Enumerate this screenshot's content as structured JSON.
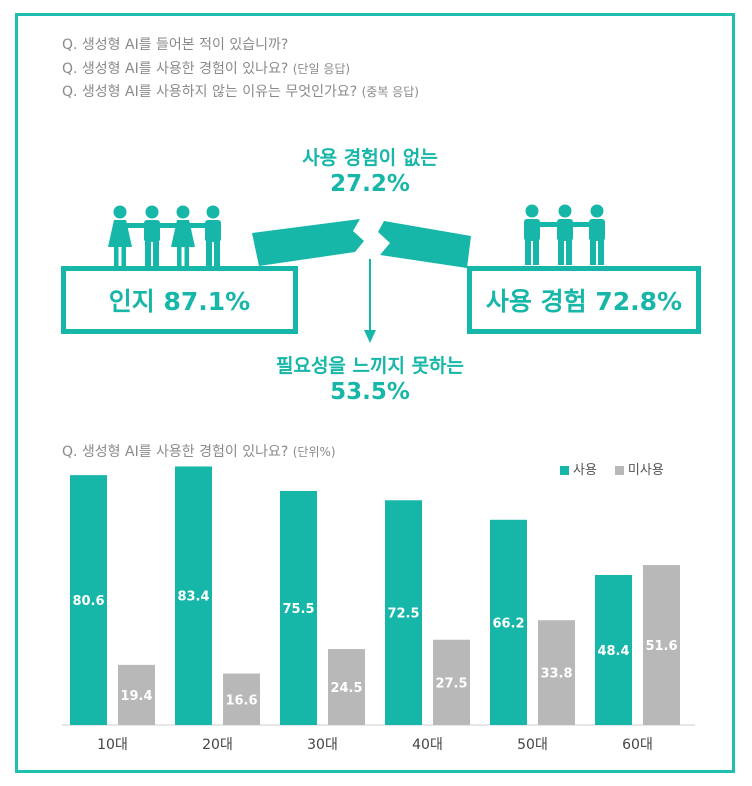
{
  "questions": [
    {
      "text": "Q. 생성형 AI를 들어본 적이 있습니까?",
      "note": ""
    },
    {
      "text": "Q. 생성형 AI를 사용한 경험이 있나요?",
      "note": "(단일 응답)"
    },
    {
      "text": "Q. 생성형 AI를 사용하지 않는 이유는 무엇인가요?",
      "note": "(중복 응답)"
    }
  ],
  "infographic": {
    "no_experience_label": "사용 경험이 없는",
    "no_experience_value": "27.2%",
    "awareness_label": "인지 87.1%",
    "usage_label": "사용 경험 72.8%",
    "no_need_label": "필요성을 느끼지 못하는",
    "no_need_value": "53.5%"
  },
  "chart_title": {
    "text": "Q. 생성형 AI를 사용한 경험이 있나요?",
    "note": "(단위%)"
  },
  "colors": {
    "accent": "#16b6a8",
    "gray": "#b8b8b8",
    "text_gray": "#8a8a8a"
  },
  "chart_data": {
    "type": "bar",
    "categories": [
      "10대",
      "20대",
      "30대",
      "40대",
      "50대",
      "60대"
    ],
    "series": [
      {
        "name": "사용",
        "color": "#16b6a8",
        "values": [
          80.6,
          83.4,
          75.5,
          72.5,
          66.2,
          48.4
        ]
      },
      {
        "name": "미사용",
        "color": "#b8b8b8",
        "values": [
          19.4,
          16.6,
          24.5,
          27.5,
          33.8,
          51.6
        ]
      }
    ],
    "legend_position": "top-right",
    "ylim": [
      0,
      100
    ],
    "grid": false
  }
}
